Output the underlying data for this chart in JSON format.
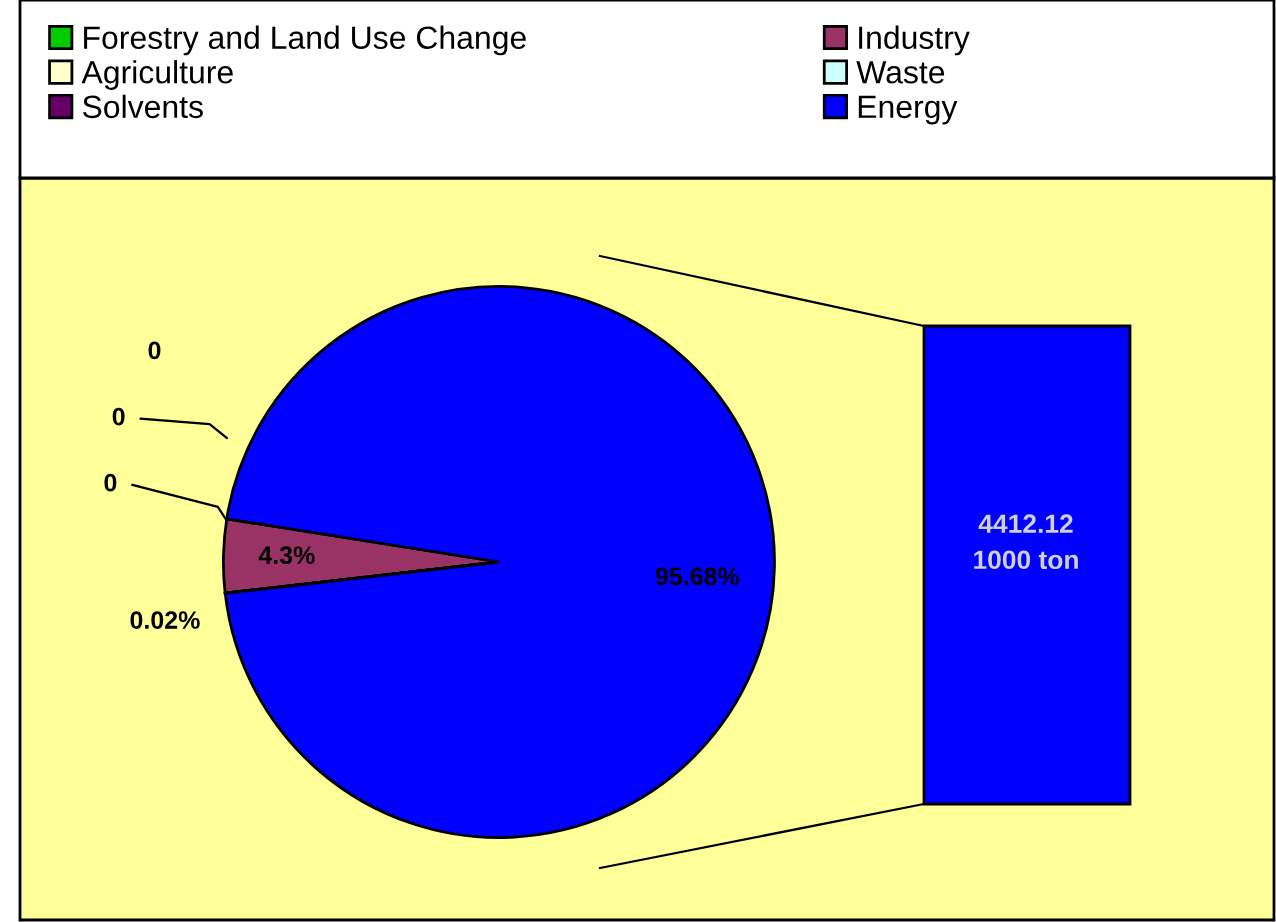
{
  "chart_data": {
    "type": "pie",
    "categories": [
      "Forestry and Land Use Change",
      "Industry",
      "Agriculture",
      "Waste",
      "Solvents",
      "Energy"
    ],
    "values": [
      0,
      4.3,
      0,
      0,
      0.02,
      95.68
    ],
    "colors": [
      "#00cc00",
      "#993366",
      "#ffffcc",
      "#ccffff",
      "#660066",
      "#0000ff"
    ],
    "value_labels": [
      "0",
      "4.3%",
      "0",
      "0",
      "0.02%",
      "95.68%"
    ],
    "legend": "top",
    "annotations": [
      "4412.12\n1000 ton"
    ]
  }
}
